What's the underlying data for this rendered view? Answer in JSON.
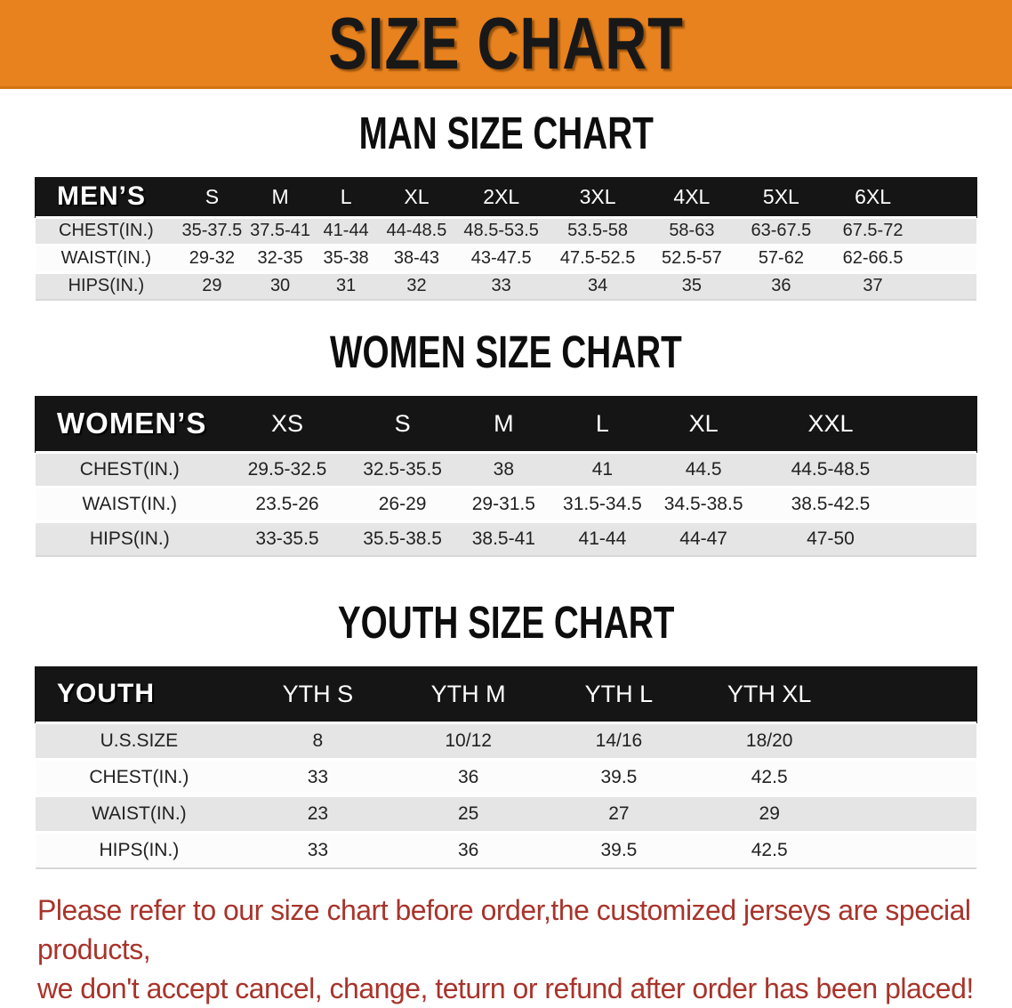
{
  "banner": {
    "title": "SIZE CHART",
    "bg_color": "#E8821E"
  },
  "colors": {
    "table_header_bg": "#151515",
    "row_alt_bg": "#E5E5E5",
    "footer_text": "#A8342B"
  },
  "sections": [
    {
      "heading": "MAN SIZE CHART",
      "table": {
        "header_label": "MEN’S",
        "columns": [
          "S",
          "M",
          "L",
          "XL",
          "2XL",
          "3XL",
          "4XL",
          "5XL",
          "6XL"
        ],
        "rows": [
          {
            "label": "CHEST(IN.)",
            "values": [
              "35-37.5",
              "37.5-41",
              "41-44",
              "44-48.5",
              "48.5-53.5",
              "53.5-58",
              "58-63",
              "63-67.5",
              "67.5-72"
            ]
          },
          {
            "label": "WAIST(IN.)",
            "values": [
              "29-32",
              "32-35",
              "35-38",
              "38-43",
              "43-47.5",
              "47.5-52.5",
              "52.5-57",
              "57-62",
              "62-66.5"
            ]
          },
          {
            "label": "HIPS(IN.)",
            "values": [
              "29",
              "30",
              "31",
              "32",
              "33",
              "34",
              "35",
              "36",
              "37"
            ]
          }
        ]
      }
    },
    {
      "heading": "WOMEN SIZE CHART",
      "table": {
        "header_label": "WOMEN’S",
        "columns": [
          "XS",
          "S",
          "M",
          "L",
          "XL",
          "XXL"
        ],
        "rows": [
          {
            "label": "CHEST(IN.)",
            "values": [
              "29.5-32.5",
              "32.5-35.5",
              "38",
              "41",
              "44.5",
              "44.5-48.5"
            ]
          },
          {
            "label": "WAIST(IN.)",
            "values": [
              "23.5-26",
              "26-29",
              "29-31.5",
              "31.5-34.5",
              "34.5-38.5",
              "38.5-42.5"
            ]
          },
          {
            "label": "HIPS(IN.)",
            "values": [
              "33-35.5",
              "35.5-38.5",
              "38.5-41",
              "41-44",
              "44-47",
              "47-50"
            ]
          }
        ]
      }
    },
    {
      "heading": "YOUTH SIZE CHART",
      "table": {
        "header_label": "YOUTH",
        "columns": [
          "YTH S",
          "YTH M",
          "YTH L",
          "YTH XL"
        ],
        "rows": [
          {
            "label": "U.S.SIZE",
            "values": [
              "8",
              "10/12",
              "14/16",
              "18/20"
            ]
          },
          {
            "label": "CHEST(IN.)",
            "values": [
              "33",
              "36",
              "39.5",
              "42.5"
            ]
          },
          {
            "label": "WAIST(IN.)",
            "values": [
              "23",
              "25",
              "27",
              "29"
            ]
          },
          {
            "label": "HIPS(IN.)",
            "values": [
              "33",
              "36",
              "39.5",
              "42.5"
            ]
          }
        ]
      }
    }
  ],
  "footer": {
    "line1": "Please refer to our size chart before order,the customized jerseys are special products,",
    "line2": "we don't accept cancel, change, teturn or refund after order has been placed!"
  }
}
